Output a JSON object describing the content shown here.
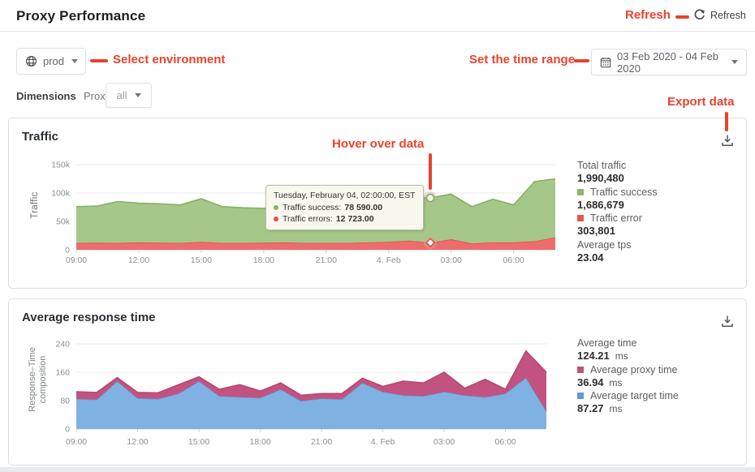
{
  "header": {
    "title": "Proxy Performance",
    "refresh_label": "Refresh"
  },
  "annotations": {
    "color": "#e8432c",
    "refresh": "Refresh",
    "select_environment": "Select environment",
    "set_time_range": "Set the time range",
    "export_data": "Export data",
    "hover_over_data": "Hover over data"
  },
  "filters": {
    "environment": "prod",
    "date_range": "03 Feb 2020 - 04 Feb 2020",
    "dimensions_label": "Dimensions",
    "proxy_label": "Proxy",
    "proxy_value": "all"
  },
  "traffic_card": {
    "title": "Traffic",
    "ylabel": "Traffic",
    "stats": [
      {
        "label": "Total traffic",
        "value": "1,990,480"
      },
      {
        "label": "Traffic success",
        "value": "1,686,679",
        "swatch": "#8bb869"
      },
      {
        "label": "Traffic error",
        "value": "303,801",
        "swatch": "#e45555"
      },
      {
        "label": "Average tps",
        "value": "23.04"
      }
    ],
    "tooltip": {
      "title": "Tuesday, February 04, 02:00:00, EST",
      "rows": [
        {
          "label": "Traffic success:",
          "value": "78 590.00",
          "color": "#83b262"
        },
        {
          "label": "Traffic errors:",
          "value": "12 723.00",
          "color": "#e04f4f"
        }
      ]
    }
  },
  "response_card": {
    "title": "Average response time",
    "ylabel_line1": "Response–Time",
    "ylabel_line2": "composition",
    "stats": [
      {
        "label": "Average time",
        "value": "124.21",
        "unit": "ms"
      },
      {
        "label": "Average proxy time",
        "value": "36.94",
        "unit": "ms",
        "swatch": "#c0527d"
      },
      {
        "label": "Average target time",
        "value": "87.27",
        "unit": "ms",
        "swatch": "#5f9ad8"
      }
    ]
  },
  "chart_data": [
    {
      "id": "traffic-chart",
      "type": "area",
      "stacked": true,
      "title": "Traffic",
      "xlabel": "",
      "ylabel": "Traffic",
      "x": [
        "09:00",
        "10:00",
        "11:00",
        "12:00",
        "13:00",
        "14:00",
        "15:00",
        "16:00",
        "17:00",
        "18:00",
        "19:00",
        "20:00",
        "21:00",
        "22:00",
        "23:00",
        "00:00",
        "01:00",
        "02:00",
        "03:00",
        "04:00",
        "05:00",
        "06:00",
        "07:00",
        "08:00"
      ],
      "x_tick_indices": [
        0,
        3,
        6,
        9,
        12,
        15,
        18,
        21
      ],
      "x_tick_labels": [
        "09:00",
        "12:00",
        "15:00",
        "18:00",
        "21:00",
        "4. Feb",
        "03:00",
        "06:00"
      ],
      "yticks": [
        0,
        50000,
        100000,
        150000
      ],
      "ytick_labels": [
        "0",
        "50k",
        "100k",
        "150k"
      ],
      "ylim": [
        0,
        150000
      ],
      "grid": true,
      "legend_position": "right-stats",
      "series": [
        {
          "name": "Traffic errors",
          "fill": "#ee6c6c",
          "line": "#e04f4f",
          "values": [
            12000,
            12500,
            12000,
            13000,
            12500,
            12000,
            14000,
            12000,
            12000,
            12500,
            13000,
            12000,
            12000,
            12000,
            13000,
            14000,
            16000,
            12723,
            18500,
            11000,
            13000,
            13000,
            15000,
            22000
          ]
        },
        {
          "name": "Traffic success",
          "fill": "#a6c78a",
          "line": "#83b262",
          "values": [
            64000,
            64500,
            73000,
            69000,
            68500,
            67000,
            76000,
            64000,
            62000,
            60500,
            61000,
            64000,
            63000,
            66000,
            72000,
            76000,
            77000,
            78590,
            79500,
            65000,
            76000,
            66000,
            105000,
            103000
          ]
        }
      ],
      "markers": [
        {
          "series_index": 1,
          "index": 17,
          "shape": "circle"
        },
        {
          "series_index": 0,
          "index": 17,
          "shape": "diamond"
        }
      ]
    },
    {
      "id": "response-chart",
      "type": "area",
      "stacked": true,
      "title": "Average response time",
      "xlabel": "",
      "ylabel": "Response–Time composition",
      "x": [
        "09:00",
        "10:00",
        "11:00",
        "12:00",
        "13:00",
        "14:00",
        "15:00",
        "16:00",
        "17:00",
        "18:00",
        "19:00",
        "20:00",
        "21:00",
        "22:00",
        "23:00",
        "00:00",
        "01:00",
        "02:00",
        "03:00",
        "04:00",
        "05:00",
        "06:00",
        "07:00",
        "08:00"
      ],
      "x_tick_indices": [
        0,
        3,
        6,
        9,
        12,
        15,
        18,
        21
      ],
      "x_tick_labels": [
        "09:00",
        "12:00",
        "15:00",
        "18:00",
        "21:00",
        "4. Feb",
        "03:00",
        "06:00"
      ],
      "yticks": [
        0,
        80,
        160,
        240
      ],
      "ytick_labels": [
        "0",
        "80",
        "160",
        "240"
      ],
      "ylim": [
        0,
        240
      ],
      "grid": true,
      "legend_position": "right-stats",
      "series": [
        {
          "name": "Average target time",
          "fill": "#80b1e3",
          "line": "#6598d0",
          "values": [
            85,
            83,
            135,
            87,
            85,
            100,
            135,
            93,
            90,
            88,
            112,
            79,
            86,
            84,
            130,
            105,
            95,
            93,
            105,
            95,
            90,
            100,
            145,
            50
          ]
        },
        {
          "name": "Average proxy time",
          "fill": "#c25380",
          "line": "#b74671",
          "values": [
            20,
            20,
            10,
            16,
            17,
            25,
            12,
            19,
            35,
            19,
            18,
            16,
            14,
            16,
            13,
            15,
            40,
            37,
            55,
            20,
            50,
            12,
            75,
            110
          ]
        }
      ]
    }
  ]
}
